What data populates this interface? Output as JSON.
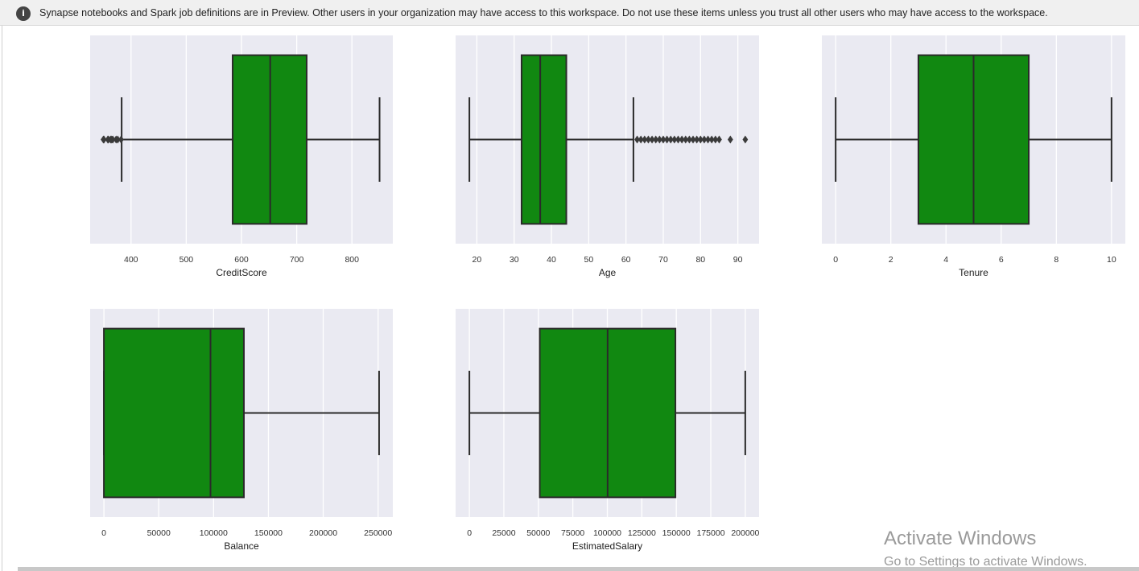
{
  "banner": {
    "icon": "info-icon",
    "message": "Synapse notebooks and Spark job definitions are in Preview. Other users in your organization may have access to this workspace. Do not use these items unless you trust all other users who may have access to the workspace."
  },
  "watermark": {
    "title": "Activate Windows",
    "subtitle": "Go to Settings to activate Windows."
  },
  "chart_data": [
    {
      "type": "box",
      "xlabel": "CreditScore",
      "xlim": [
        326,
        874
      ],
      "ticks": [
        400,
        500,
        600,
        700,
        800
      ],
      "box": {
        "whisker_low": 383,
        "q1": 584,
        "median": 652,
        "q3": 718,
        "whisker_high": 850
      },
      "outliers": [
        350,
        351,
        358,
        359,
        363,
        365,
        367,
        373,
        376,
        382
      ],
      "color": "#118811",
      "grid": true
    },
    {
      "type": "box",
      "xlabel": "Age",
      "xlim": [
        14.3,
        95.7
      ],
      "ticks": [
        20,
        30,
        40,
        50,
        60,
        70,
        80,
        90
      ],
      "box": {
        "whisker_low": 18,
        "q1": 32,
        "median": 37,
        "q3": 44,
        "whisker_high": 62
      },
      "outliers": [
        63,
        64,
        65,
        66,
        67,
        68,
        69,
        70,
        71,
        72,
        73,
        74,
        75,
        76,
        77,
        78,
        79,
        80,
        81,
        82,
        83,
        84,
        85,
        88,
        92
      ],
      "color": "#118811",
      "grid": true
    },
    {
      "type": "box",
      "xlabel": "Tenure",
      "xlim": [
        -0.5,
        10.5
      ],
      "ticks": [
        0,
        2,
        4,
        6,
        8,
        10
      ],
      "box": {
        "whisker_low": 0,
        "q1": 3,
        "median": 5,
        "q3": 7,
        "whisker_high": 10
      },
      "outliers": [],
      "color": "#118811",
      "grid": true
    },
    {
      "type": "box",
      "xlabel": "Balance",
      "xlim": [
        -12544,
        263442
      ],
      "ticks": [
        0,
        50000,
        100000,
        150000,
        200000,
        250000
      ],
      "box": {
        "whisker_low": 0,
        "q1": 0,
        "median": 97199,
        "q3": 127644,
        "whisker_high": 250898
      },
      "outliers": [],
      "color": "#118811",
      "grid": true
    },
    {
      "type": "box",
      "xlabel": "EstimatedSalary",
      "xlim": [
        -9987,
        209992
      ],
      "ticks": [
        0,
        25000,
        50000,
        75000,
        100000,
        125000,
        150000,
        175000,
        200000
      ],
      "box": {
        "whisker_low": 11.58,
        "q1": 51002,
        "median": 100194,
        "q3": 149388,
        "whisker_high": 199992
      },
      "outliers": [],
      "color": "#118811",
      "grid": true
    }
  ]
}
